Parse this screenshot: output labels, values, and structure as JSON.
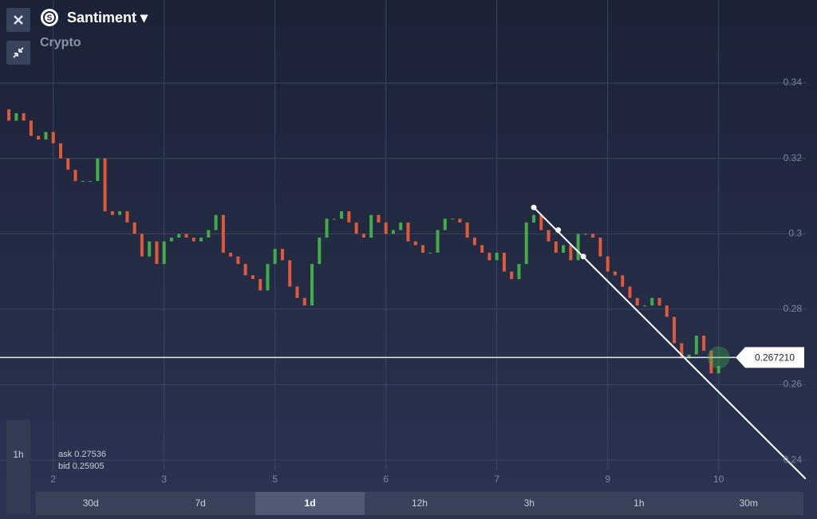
{
  "header": {
    "title": "Santiment",
    "subtitle": "Crypto"
  },
  "chart_data": {
    "type": "candlestick",
    "x": [
      0,
      1,
      2,
      3,
      4,
      5,
      6,
      7,
      8,
      9,
      10,
      11,
      12,
      13,
      14,
      15,
      16,
      17,
      18,
      19,
      20,
      21,
      22,
      23,
      24,
      25,
      26,
      27,
      28,
      29,
      30,
      31,
      32,
      33,
      34,
      35,
      36,
      37,
      38,
      39,
      40,
      41,
      42,
      43,
      44,
      45,
      46,
      47,
      48,
      49,
      50,
      51,
      52,
      53,
      54,
      55,
      56,
      57,
      58,
      59,
      60,
      61,
      62,
      63,
      64,
      65,
      66,
      67,
      68,
      69,
      70,
      71,
      72,
      73,
      74,
      75,
      76,
      77,
      78,
      79,
      80,
      81,
      82,
      83,
      84,
      85,
      86,
      87,
      88,
      89,
      90,
      91,
      92,
      93,
      94,
      95,
      96
    ],
    "open": [
      0.333,
      0.33,
      0.332,
      0.33,
      0.326,
      0.325,
      0.327,
      0.324,
      0.32,
      0.317,
      0.314,
      0.314,
      0.314,
      0.32,
      0.306,
      0.305,
      0.306,
      0.303,
      0.3,
      0.294,
      0.298,
      0.292,
      0.298,
      0.299,
      0.3,
      0.299,
      0.298,
      0.299,
      0.301,
      0.305,
      0.295,
      0.294,
      0.292,
      0.289,
      0.288,
      0.285,
      0.292,
      0.296,
      0.293,
      0.286,
      0.283,
      0.281,
      0.292,
      0.299,
      0.304,
      0.304,
      0.306,
      0.303,
      0.3,
      0.299,
      0.305,
      0.303,
      0.3,
      0.301,
      0.303,
      0.298,
      0.297,
      0.295,
      0.295,
      0.301,
      0.304,
      0.304,
      0.303,
      0.299,
      0.297,
      0.295,
      0.293,
      0.295,
      0.29,
      0.288,
      0.292,
      0.303,
      0.305,
      0.301,
      0.298,
      0.295,
      0.297,
      0.293,
      0.3,
      0.3,
      0.299,
      0.294,
      0.29,
      0.289,
      0.286,
      0.283,
      0.281,
      0.281,
      0.283,
      0.281,
      0.278,
      0.271,
      0.267,
      0.268,
      0.273,
      0.269,
      0.263
    ],
    "close": [
      0.33,
      0.332,
      0.33,
      0.326,
      0.325,
      0.327,
      0.324,
      0.32,
      0.317,
      0.314,
      0.314,
      0.314,
      0.32,
      0.306,
      0.305,
      0.306,
      0.303,
      0.3,
      0.294,
      0.298,
      0.292,
      0.298,
      0.299,
      0.3,
      0.299,
      0.298,
      0.299,
      0.301,
      0.305,
      0.295,
      0.294,
      0.292,
      0.289,
      0.288,
      0.285,
      0.292,
      0.296,
      0.293,
      0.286,
      0.283,
      0.281,
      0.292,
      0.299,
      0.304,
      0.304,
      0.306,
      0.303,
      0.3,
      0.299,
      0.305,
      0.303,
      0.3,
      0.301,
      0.303,
      0.298,
      0.297,
      0.295,
      0.295,
      0.301,
      0.304,
      0.304,
      0.303,
      0.299,
      0.297,
      0.295,
      0.293,
      0.295,
      0.29,
      0.288,
      0.292,
      0.303,
      0.305,
      0.301,
      0.298,
      0.295,
      0.297,
      0.293,
      0.3,
      0.3,
      0.299,
      0.294,
      0.29,
      0.289,
      0.286,
      0.283,
      0.281,
      0.281,
      0.283,
      0.281,
      0.278,
      0.271,
      0.267,
      0.268,
      0.273,
      0.269,
      0.263,
      0.265
    ],
    "up_color": "#3fae47",
    "down_color": "#e05a3a",
    "xlim": [
      -1.2,
      107.8
    ],
    "xticks": [
      {
        "value": 6,
        "label": "2"
      },
      {
        "value": 21,
        "label": "3"
      },
      {
        "value": 36,
        "label": "5"
      },
      {
        "value": 51,
        "label": "6"
      },
      {
        "value": 66,
        "label": "7"
      },
      {
        "value": 81,
        "label": "9"
      },
      {
        "value": 96,
        "label": "10"
      }
    ],
    "ylim": [
      0.232,
      0.362
    ],
    "yticks": [
      0.24,
      0.26,
      0.28,
      0.3,
      0.32,
      0.34
    ],
    "grid": true,
    "trendline": {
      "x": [
        71,
        74.3,
        77.7,
        107.8
      ],
      "y": [
        0.307,
        0.301,
        0.294,
        0.235
      ]
    },
    "current_price": {
      "value": 0.26721,
      "label": "0.267210"
    }
  },
  "quote": {
    "ask_label": "ask",
    "ask": 0.27536,
    "bid_label": "bid",
    "bid": 0.25905
  },
  "toolbar": {
    "interval": "1h"
  },
  "timeframes": {
    "items": [
      "30d",
      "7d",
      "1d",
      "12h",
      "3h",
      "1h",
      "30m"
    ],
    "active": 2
  }
}
